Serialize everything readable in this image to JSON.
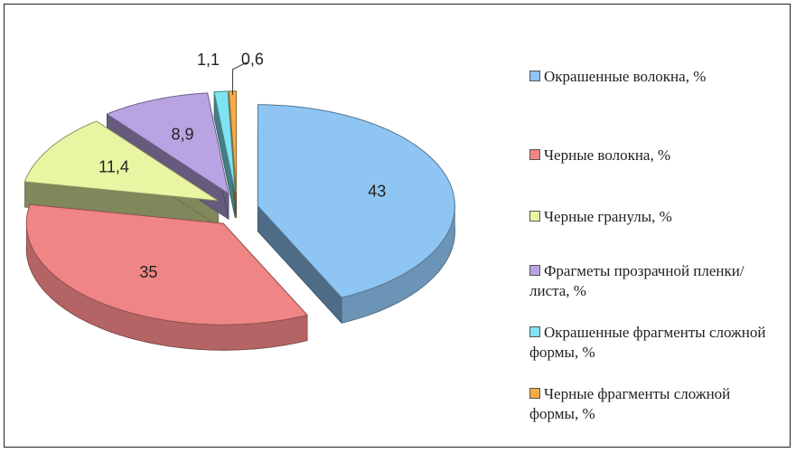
{
  "chart_data": {
    "type": "pie",
    "categories": [
      "Окрашенные волокна, %",
      "Черные волокна, %",
      "Черные гранулы, %",
      "Фрагметы прозрачной пленки/листа,  %",
      "Окрашенные фрагменты сложной формы, %",
      "Черные фрагменты сложной формы, %"
    ],
    "values": [
      43,
      35,
      11.4,
      8.9,
      1.1,
      0.6
    ],
    "value_labels": [
      "43",
      "35",
      "11,4",
      "8,9",
      "1,1",
      "0,6"
    ],
    "colors": [
      "#8ec5f3",
      "#f08585",
      "#e9f5a3",
      "#b9a3e3",
      "#7fe3f2",
      "#f7ab45"
    ]
  }
}
